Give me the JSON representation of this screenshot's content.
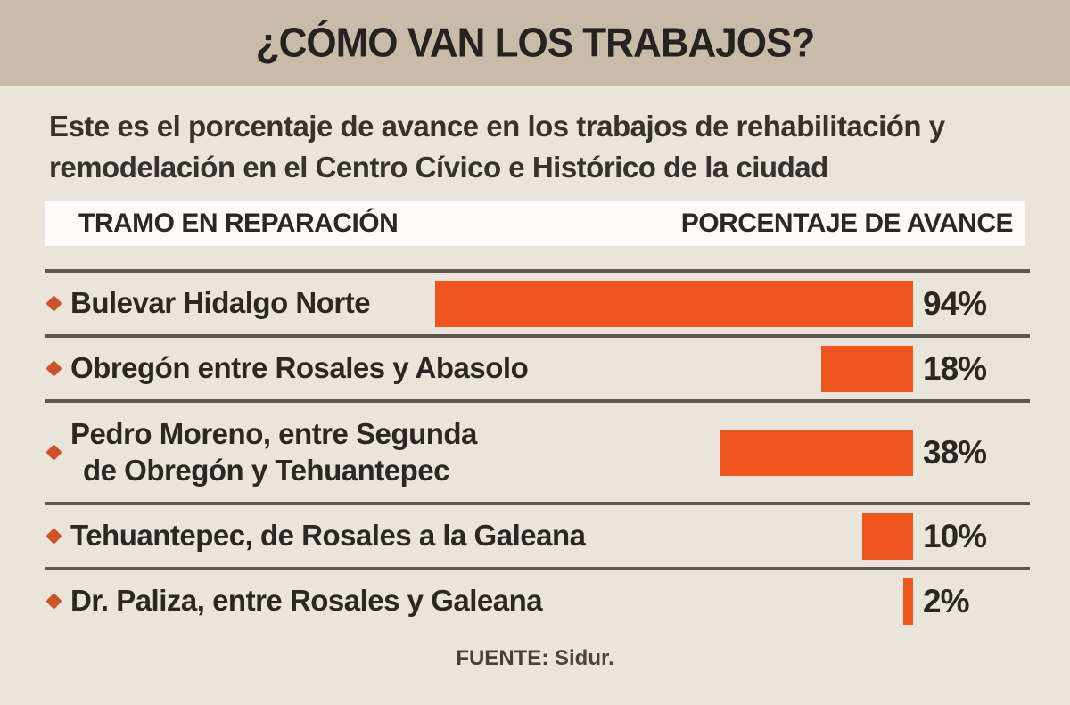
{
  "page": {
    "title": "¿CÓMO VAN LOS TRABAJOS?",
    "subtitle": "Este es el porcentaje de avance en los trabajos de rehabilitación y remodelación en el Centro Cívico e Histórico de la ciudad",
    "source_label": "FUENTE:",
    "source_value": "Sidur."
  },
  "table": {
    "col1_header": "TRAMO EN REPARACIÓN",
    "col2_header": "PORCENTAJE DE AVANCE"
  },
  "rows": [
    {
      "line1": "Bulevar Hidalgo Norte",
      "line2": "",
      "value": 94,
      "pct": "94%"
    },
    {
      "line1": "Obregón entre Rosales y Abasolo",
      "line2": "",
      "value": 18,
      "pct": "18%"
    },
    {
      "line1": "Pedro Moreno, entre Segunda",
      "line2": "de Obregón y Tehuantepec",
      "value": 38,
      "pct": "38%"
    },
    {
      "line1": "Tehuantepec, de Rosales a la Galeana",
      "line2": "",
      "value": 10,
      "pct": "10%"
    },
    {
      "line1": "Dr. Paliza, entre Rosales y Galeana",
      "line2": "",
      "value": 2,
      "pct": "2%"
    }
  ],
  "colors": {
    "title_band": "#c8bbaa",
    "background": "#e9e5db",
    "header_band": "#fcfbf7",
    "bar": "#f0551f",
    "bullet": "#cf5128",
    "separator": "#5b584f",
    "text": "#2b2723"
  },
  "chart_data": {
    "type": "bar",
    "orientation": "horizontal",
    "title": "¿CÓMO VAN LOS TRABAJOS?",
    "subtitle": "Este es el porcentaje de avance en los trabajos de rehabilitación y remodelación en el Centro Cívico e Histórico de la ciudad",
    "categories": [
      "Bulevar Hidalgo Norte",
      "Obregón entre Rosales y Abasolo",
      "Pedro Moreno, entre Segunda de Obregón y Tehuantepec",
      "Tehuantepec, de Rosales a la Galeana",
      "Dr. Paliza, entre Rosales y Galeana"
    ],
    "values": [
      94,
      18,
      38,
      10,
      2
    ],
    "value_labels": [
      "94%",
      "18%",
      "38%",
      "10%",
      "2%"
    ],
    "xlabel": "PORCENTAJE DE AVANCE",
    "ylabel": "TRAMO EN REPARACIÓN",
    "xlim": [
      0,
      100
    ],
    "bar_color": "#f0551f",
    "bar_alignment": "right",
    "grid": false,
    "legend": false,
    "source": "FUENTE: Sidur."
  }
}
